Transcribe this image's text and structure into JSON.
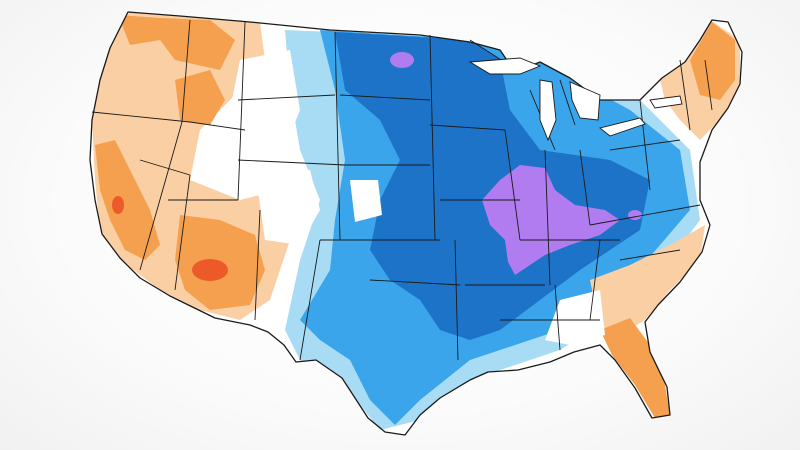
{
  "map": {
    "region": "contiguous-united-states",
    "kind": "temperature-anomaly-outlook",
    "palette": {
      "land_neutral": "#ffffff",
      "cold_light": "#a8dcf5",
      "cold_medium": "#3aa5ea",
      "cold_strong": "#1d73c8",
      "cold_extreme": "#b07cf0",
      "warm_light": "#fbcfa4",
      "warm_medium": "#f5a04e",
      "warm_strong": "#f08a2a",
      "warm_extreme": "#ec5a2a",
      "border": "#1a1a1a",
      "background": "#ffffff"
    },
    "legend": {
      "visible": false
    },
    "title": "",
    "zones": [
      {
        "name": "pacific-northwest",
        "anomaly": "warm"
      },
      {
        "name": "california-nevada",
        "anomaly": "warm"
      },
      {
        "name": "desert-southwest",
        "anomaly": "warm-strong"
      },
      {
        "name": "northern-rockies",
        "anomaly": "neutral"
      },
      {
        "name": "northern-plains",
        "anomaly": "cold-strong"
      },
      {
        "name": "central-plains",
        "anomaly": "cold"
      },
      {
        "name": "southern-plains",
        "anomaly": "cold"
      },
      {
        "name": "mississippi-valley",
        "anomaly": "cold-strong"
      },
      {
        "name": "ohio-valley",
        "anomaly": "cold-extreme"
      },
      {
        "name": "great-lakes",
        "anomaly": "cold"
      },
      {
        "name": "new-england",
        "anomaly": "warm"
      },
      {
        "name": "southeast-coast",
        "anomaly": "warm-light"
      },
      {
        "name": "florida",
        "anomaly": "warm"
      }
    ]
  }
}
